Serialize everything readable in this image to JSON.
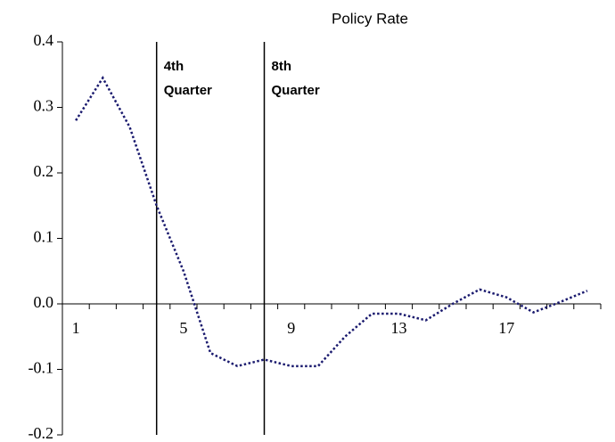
{
  "chart_data": {
    "type": "line",
    "title": "Policy Rate",
    "categories": [
      1,
      null,
      null,
      null,
      5,
      null,
      null,
      null,
      9,
      null,
      null,
      null,
      13,
      null,
      null,
      null,
      17,
      null,
      null,
      null
    ],
    "series": [
      {
        "name": "Policy Rate",
        "color": "#1a1a6e",
        "values": [
          0.28,
          0.345,
          0.27,
          0.15,
          0.05,
          -0.075,
          -0.095,
          -0.085,
          -0.095,
          -0.095,
          -0.05,
          -0.015,
          -0.015,
          -0.025,
          0.0,
          0.022,
          0.01,
          -0.013,
          0.003,
          0.02
        ]
      }
    ],
    "ylim": [
      -0.2,
      0.4
    ],
    "yticks": [
      -0.2,
      -0.1,
      {
        "value": 0,
        "label": "0.0"
      },
      0.1,
      0.2,
      0.3,
      0.4
    ],
    "annotations": [
      {
        "x": 4,
        "lines": [
          "4th",
          "Quarter"
        ]
      },
      {
        "x": 8,
        "lines": [
          "8th",
          "Quarter"
        ]
      }
    ]
  }
}
